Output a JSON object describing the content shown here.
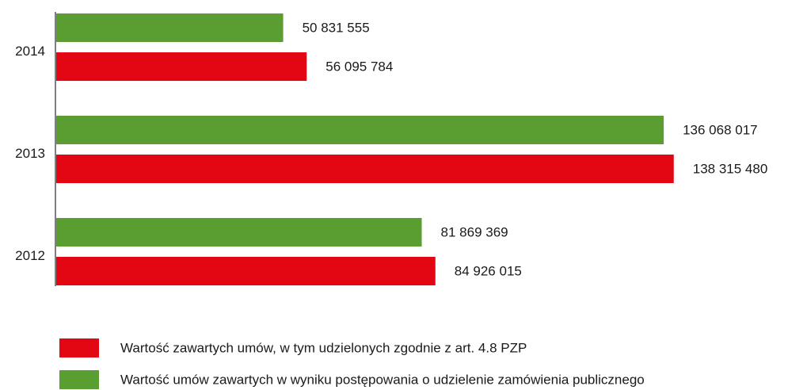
{
  "chart_data": {
    "type": "barh",
    "categories": [
      "2014",
      "2013",
      "2012"
    ],
    "series": [
      {
        "name": "Wartość zawartych umów, w tym udzielonych zgodnie z art. 4.8 PZP",
        "color": "#e30613",
        "values": [
          56095784,
          138315480,
          84926015
        ],
        "value_labels": [
          "56 095 784",
          "138 315 480",
          "84 926 015"
        ]
      },
      {
        "name": "Wartość umów zawartych w wyniku postępowania o udzielenie zamówienia publicznego",
        "color": "#5a9e32",
        "values": [
          50831555,
          136068017,
          81869369
        ],
        "value_labels": [
          "50 831 555",
          "136 068 017",
          "81 869 369"
        ]
      }
    ],
    "xlim": [
      0,
      160000000
    ]
  }
}
